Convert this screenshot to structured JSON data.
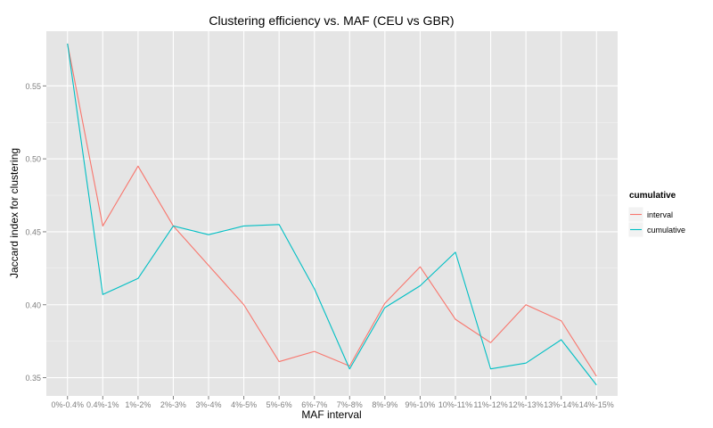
{
  "chart_data": {
    "type": "line",
    "title": "Clustering efficiency vs. MAF (CEU vs GBR)",
    "xlabel": "MAF interval",
    "ylabel": "Jaccard index for clustering",
    "categories": [
      "0%-0.4%",
      "0.4%-1%",
      "1%-2%",
      "2%-3%",
      "3%-4%",
      "4%-5%",
      "5%-6%",
      "6%-7%",
      "7%-8%",
      "8%-9%",
      "9%-10%",
      "10%-11%",
      "11%-12%",
      "12%-13%",
      "13%-14%",
      "14%-15%"
    ],
    "ylim": [
      0.3375,
      0.5875
    ],
    "yticks": [
      0.35,
      0.4,
      0.45,
      0.5,
      0.55
    ],
    "ytick_labels": [
      "0.35",
      "0.40",
      "0.45",
      "0.50",
      "0.55"
    ],
    "grid": true,
    "legend": {
      "title": "cumulative",
      "placement": "right"
    },
    "series": [
      {
        "name": "interval",
        "color": "#F8766D",
        "values": [
          0.579,
          0.454,
          0.495,
          0.454,
          0.427,
          0.4,
          0.361,
          0.368,
          0.358,
          0.401,
          0.426,
          0.39,
          0.374,
          0.4,
          0.389,
          0.351
        ]
      },
      {
        "name": "cumulative",
        "color": "#00BFC4",
        "values": [
          0.579,
          0.407,
          0.418,
          0.454,
          0.448,
          0.454,
          0.455,
          0.411,
          0.356,
          0.398,
          0.413,
          0.436,
          0.356,
          0.36,
          0.376,
          0.345
        ]
      }
    ]
  }
}
